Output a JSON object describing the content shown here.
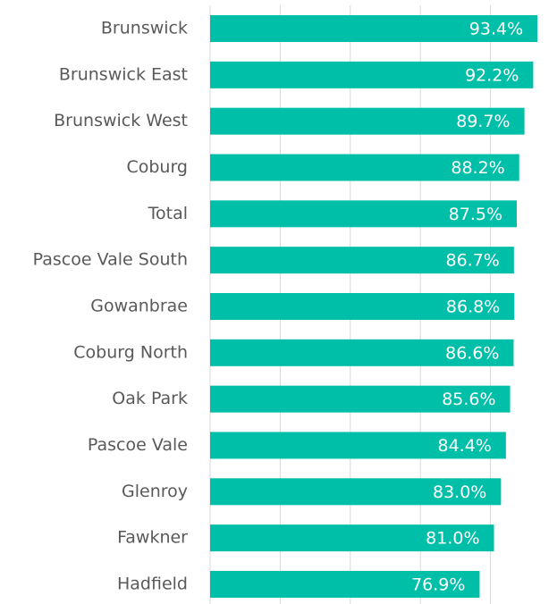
{
  "chart_data": {
    "type": "bar",
    "orientation": "horizontal",
    "categories": [
      "Brunswick",
      "Brunswick East",
      "Brunswick West",
      "Coburg",
      "Total",
      "Pascoe Vale South",
      "Gowanbrae",
      "Coburg North",
      "Oak Park",
      "Pascoe Vale",
      "Glenroy",
      "Fawkner",
      "Hadfield"
    ],
    "values": [
      93.4,
      92.2,
      89.7,
      88.2,
      87.5,
      86.7,
      86.8,
      86.6,
      85.6,
      84.4,
      83.0,
      81.0,
      76.9
    ],
    "value_labels": [
      "93.4%",
      "92.2%",
      "89.7%",
      "88.2%",
      "87.5%",
      "86.7%",
      "86.8%",
      "86.6%",
      "85.6%",
      "84.4%",
      "83.0%",
      "81.0%",
      "76.9%"
    ],
    "color": "#00bfa8",
    "xlim": [
      0,
      100
    ],
    "xticks": [
      0,
      20,
      40,
      60,
      80,
      100
    ],
    "grid": true
  }
}
